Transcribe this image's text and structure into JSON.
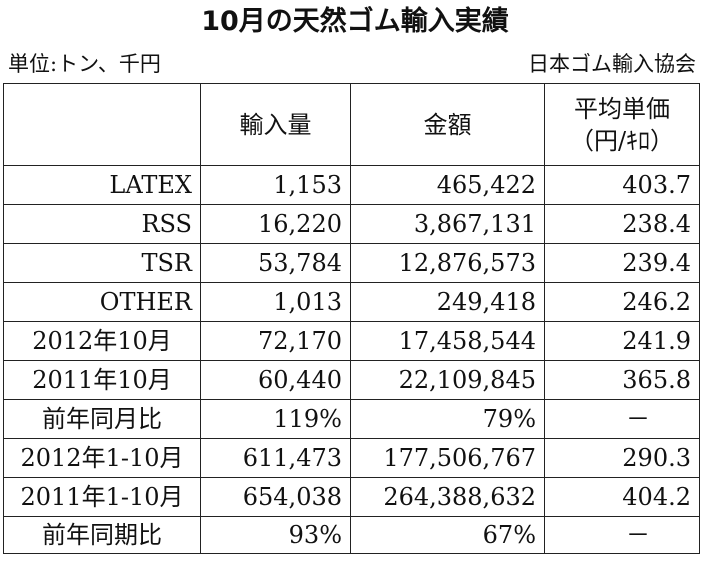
{
  "title": "10月の天然ゴム輸入実績",
  "unit": "単位:トン、千円",
  "source": "日本ゴム輸入協会",
  "headers": {
    "blank": "",
    "quantity": "輸入量",
    "amount": "金額",
    "price_line1": "平均単価",
    "price_line2": "（円/ｷﾛ）"
  },
  "rows": [
    {
      "label": "LATEX",
      "quantity": "1,153",
      "amount": "465,422",
      "price": "403.7"
    },
    {
      "label": "RSS",
      "quantity": "16,220",
      "amount": "3,867,131",
      "price": "238.4"
    },
    {
      "label": "TSR",
      "quantity": "53,784",
      "amount": "12,876,573",
      "price": "239.4"
    },
    {
      "label": "OTHER",
      "quantity": "1,013",
      "amount": "249,418",
      "price": "246.2"
    },
    {
      "label": "2012年10月",
      "quantity": "72,170",
      "amount": "17,458,544",
      "price": "241.9"
    },
    {
      "label": "2011年10月",
      "quantity": "60,440",
      "amount": "22,109,845",
      "price": "365.8"
    },
    {
      "label": "前年同月比",
      "quantity": "119%",
      "amount": "79%",
      "price": "－"
    },
    {
      "label": "2012年1-10月",
      "quantity": "611,473",
      "amount": "177,506,767",
      "price": "290.3"
    },
    {
      "label": "2011年1-10月",
      "quantity": "654,038",
      "amount": "264,388,632",
      "price": "404.2"
    },
    {
      "label": "前年同期比",
      "quantity": "93%",
      "amount": "67%",
      "price": "－"
    }
  ]
}
